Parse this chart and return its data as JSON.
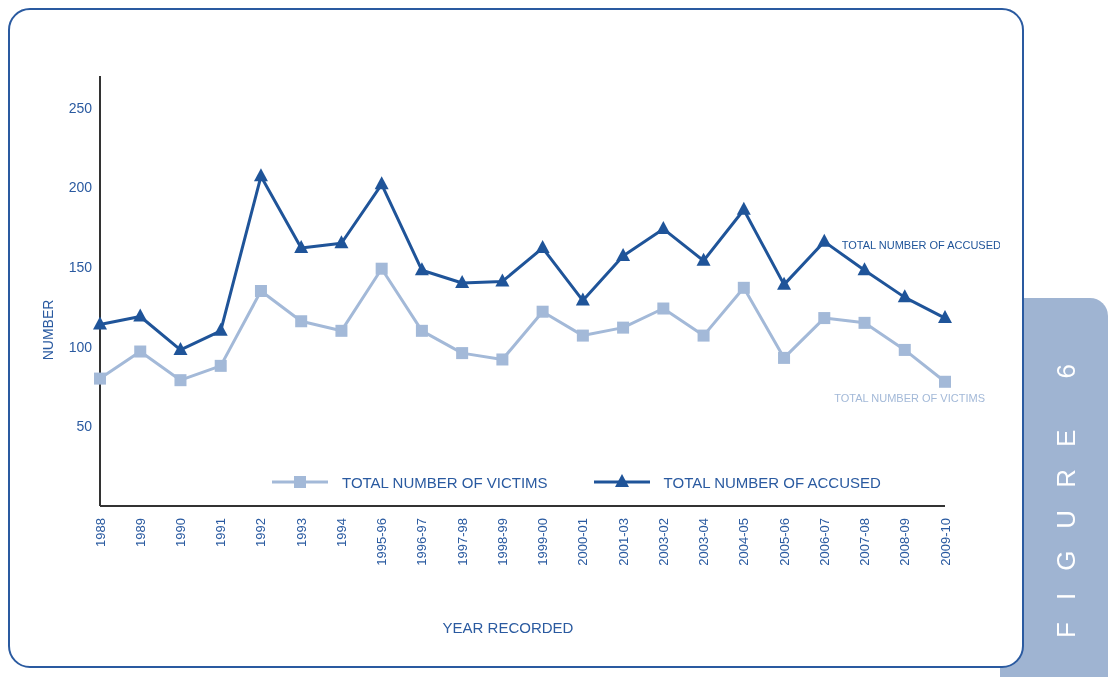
{
  "chart_data": {
    "type": "line",
    "xlabel": "YEAR RECORDED",
    "ylabel": "NUMBER",
    "annotations": [
      "FIGURE 6"
    ],
    "categories": [
      "1988",
      "1989",
      "1990",
      "1991",
      "1992",
      "1993",
      "1994",
      "1995-96",
      "1996-97",
      "1997-98",
      "1998-99",
      "1999-00",
      "2000-01",
      "2001-03",
      "2003-02",
      "2003-04",
      "2004-05",
      "2005-06",
      "2006-07",
      "2007-08",
      "2008-09",
      "2009-10"
    ],
    "series": [
      {
        "name": "TOTAL NUMBER OF VICTIMS",
        "color": "#a3b9d8",
        "marker": "square",
        "values": [
          80,
          97,
          79,
          88,
          135,
          116,
          110,
          149,
          110,
          96,
          92,
          122,
          107,
          112,
          124,
          107,
          137,
          93,
          118,
          115,
          98,
          78
        ]
      },
      {
        "name": "TOTAL NUMBER OF ACCUSED",
        "color": "#1f5499",
        "marker": "triangle",
        "values": [
          114,
          119,
          98,
          110,
          207,
          162,
          165,
          202,
          148,
          140,
          141,
          162,
          129,
          157,
          174,
          154,
          186,
          139,
          166,
          148,
          131,
          118
        ]
      }
    ],
    "ylim": [
      0,
      270
    ],
    "yticks": [
      50,
      100,
      150,
      200,
      250
    ],
    "grid": false,
    "legend": "bottom",
    "line_style": "solid"
  }
}
